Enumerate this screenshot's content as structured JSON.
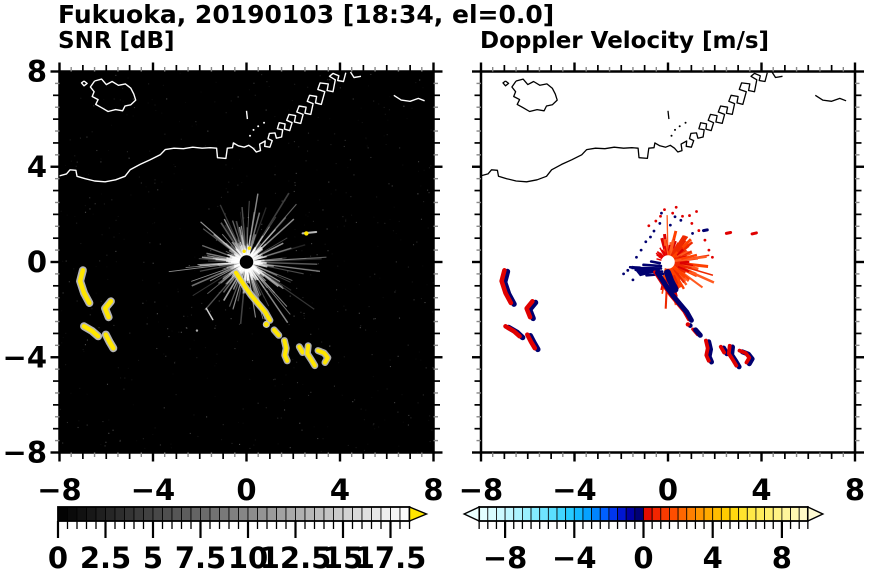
{
  "header": {
    "title": "Fukuoka, 20190103 [18:34, el=0.0]"
  },
  "colors": {
    "yellow": "#ffe600",
    "red": "#e00000",
    "navy": "#000070",
    "snr_bg": "#000000",
    "vel_bg": "#ffffff",
    "snr_coast": "#ffffff",
    "vel_coast": "#000000"
  },
  "chart_data": [
    {
      "type": "heatmap",
      "panel": "left",
      "title": "SNR [dB]",
      "xlim": [
        -8,
        8
      ],
      "ylim": [
        -8,
        8
      ],
      "xticks": [
        -8,
        -4,
        0,
        4,
        8
      ],
      "yticks": [
        8,
        4,
        0,
        -4,
        -8
      ],
      "xtick_labels": [
        "−8",
        "−4",
        "0",
        "4",
        "8"
      ],
      "ytick_labels": [
        "8",
        "4",
        "0",
        "−4",
        "−8"
      ],
      "minor_tick_step": 0.5,
      "background": "#000000",
      "coast_color": "#ffffff",
      "colorbar": {
        "orientation": "horizontal",
        "range": [
          0,
          18.5
        ],
        "cell_step": 0.5,
        "tick_values": [
          0,
          2.5,
          5,
          7.5,
          10,
          12.5,
          15,
          17.5
        ],
        "tick_labels": [
          "0",
          "2.5",
          "5",
          "7.5",
          "10",
          "12.5",
          "15",
          "17.5"
        ],
        "scale": "grayscale black to white",
        "over_arrow_color": "#ffe600"
      },
      "annotations": [
        "radar site at (0,0) with gray clutter starburst",
        "high-SNR yellow echo arc curving southeast from (-0.5,-0.5) to (3.5,-4.2)",
        "yellow echo patches offshore near x -7.2..-5.6, y -0.3..-3.6",
        "white coastline of Hakata Bay: island near (-5.7,7), harbor piers northeast of (1,5)"
      ]
    },
    {
      "type": "heatmap",
      "panel": "right",
      "title": "Doppler Velocity [m/s]",
      "xlim": [
        -8,
        8
      ],
      "ylim": [
        -8,
        8
      ],
      "xticks": [
        -8,
        -4,
        0,
        4,
        8
      ],
      "yticks": [
        8,
        4,
        0,
        -4,
        -8
      ],
      "xtick_labels": [
        "−8",
        "−4",
        "0",
        "4",
        "8"
      ],
      "ytick_labels": [],
      "minor_tick_step": 0.5,
      "background": "#ffffff",
      "coast_color": "#000000",
      "colorbar": {
        "orientation": "horizontal",
        "range": [
          -9.5,
          9.5
        ],
        "cell_step": 0.5,
        "tick_values": [
          -8,
          -4,
          0,
          4,
          8
        ],
        "tick_labels": [
          "−8",
          "−4",
          "0",
          "4",
          "8"
        ],
        "scale": "diverging cyan-blue-navy (negative) / red-orange-yellow-cream (positive)",
        "under_arrow_color": "#eaffff",
        "over_arrow_color": "#fffbd2",
        "stops": [
          [
            -9.5,
            "#e8ffff"
          ],
          [
            -8,
            "#c8f8ff"
          ],
          [
            -6.5,
            "#8feeff"
          ],
          [
            -5,
            "#4fdcff"
          ],
          [
            -4,
            "#19c5ff"
          ],
          [
            -3,
            "#0096ff"
          ],
          [
            -2.2,
            "#005cff"
          ],
          [
            -1.5,
            "#0022e8"
          ],
          [
            -0.8,
            "#0000a8"
          ],
          [
            -0.01,
            "#000060"
          ],
          [
            0.01,
            "#dc0000"
          ],
          [
            0.8,
            "#f32800"
          ],
          [
            1.8,
            "#ff5000"
          ],
          [
            3,
            "#ff8c00"
          ],
          [
            4,
            "#ffb400"
          ],
          [
            5,
            "#ffd400"
          ],
          [
            6,
            "#ffe83c"
          ],
          [
            7.5,
            "#fff078"
          ],
          [
            8.5,
            "#fff7a8"
          ],
          [
            9.5,
            "#fffbd0"
          ]
        ]
      },
      "annotations": [
        "approaching flow (navy, negative) as spikes pointing at site from west",
        "receding flow (red, positive) starburst around site",
        "echo arc and offshore patches two-toned red/navy"
      ]
    }
  ],
  "render": {
    "coast": {
      "mainland": [
        [
          -8,
          3.62
        ],
        [
          -7.7,
          3.7
        ],
        [
          -7.55,
          3.87
        ],
        [
          -7.3,
          3.85
        ],
        [
          -7.25,
          3.6
        ],
        [
          -6.9,
          3.5
        ],
        [
          -6.5,
          3.4
        ],
        [
          -6.05,
          3.37
        ],
        [
          -5.6,
          3.45
        ],
        [
          -5.2,
          3.6
        ],
        [
          -4.98,
          3.87
        ],
        [
          -4.55,
          4.1
        ],
        [
          -4.12,
          4.29
        ],
        [
          -3.69,
          4.5
        ],
        [
          -3.48,
          4.72
        ],
        [
          -3.1,
          4.78
        ],
        [
          -2.7,
          4.76
        ],
        [
          -2.3,
          4.82
        ],
        [
          -1.9,
          4.78
        ],
        [
          -1.55,
          4.8
        ],
        [
          -1.28,
          4.78
        ],
        [
          -1.24,
          4.38
        ],
        [
          -0.88,
          4.35
        ],
        [
          -0.82,
          4.78
        ],
        [
          -0.6,
          4.8
        ],
        [
          -0.56,
          5.0
        ],
        [
          -0.35,
          4.88
        ],
        [
          -0.1,
          4.82
        ],
        [
          0.1,
          4.9
        ],
        [
          0.28,
          4.78
        ],
        [
          0.42,
          4.62
        ],
        [
          0.6,
          4.68
        ],
        [
          0.56,
          4.95
        ],
        [
          0.8,
          5.08
        ],
        [
          0.78,
          4.86
        ],
        [
          1.0,
          4.82
        ],
        [
          1.1,
          5.1
        ],
        [
          0.92,
          5.18
        ],
        [
          0.98,
          5.4
        ],
        [
          1.22,
          5.42
        ],
        [
          1.28,
          5.2
        ],
        [
          1.5,
          5.25
        ],
        [
          1.55,
          5.55
        ],
        [
          1.32,
          5.6
        ],
        [
          1.4,
          5.85
        ],
        [
          1.65,
          5.8
        ],
        [
          1.62,
          5.58
        ],
        [
          1.85,
          5.52
        ],
        [
          1.95,
          5.85
        ],
        [
          1.72,
          5.95
        ],
        [
          1.82,
          6.2
        ],
        [
          2.1,
          6.15
        ],
        [
          2.05,
          5.88
        ],
        [
          2.32,
          5.82
        ],
        [
          2.42,
          6.2
        ],
        [
          2.15,
          6.3
        ],
        [
          2.25,
          6.55
        ],
        [
          2.55,
          6.5
        ],
        [
          2.5,
          6.25
        ],
        [
          2.75,
          6.2
        ],
        [
          2.85,
          6.65
        ],
        [
          2.6,
          6.75
        ],
        [
          2.7,
          7.0
        ],
        [
          3.0,
          6.95
        ],
        [
          2.95,
          6.68
        ],
        [
          3.2,
          6.62
        ],
        [
          3.35,
          7.15
        ],
        [
          3.05,
          7.25
        ],
        [
          3.15,
          7.52
        ],
        [
          3.5,
          7.48
        ],
        [
          3.45,
          7.2
        ],
        [
          3.7,
          7.15
        ],
        [
          3.8,
          7.65
        ],
        [
          3.55,
          7.8
        ],
        [
          3.7,
          7.92
        ],
        [
          3.95,
          7.82
        ],
        [
          3.9,
          7.62
        ],
        [
          4.15,
          7.58
        ],
        [
          4.25,
          7.95
        ]
      ],
      "island": [
        [
          -6.5,
          7.6
        ],
        [
          -6.2,
          7.68
        ],
        [
          -6.0,
          7.45
        ],
        [
          -5.75,
          7.58
        ],
        [
          -5.48,
          7.42
        ],
        [
          -5.18,
          7.48
        ],
        [
          -4.95,
          7.3
        ],
        [
          -4.82,
          7.05
        ],
        [
          -4.74,
          6.8
        ],
        [
          -4.95,
          6.6
        ],
        [
          -5.2,
          6.55
        ],
        [
          -5.3,
          6.35
        ],
        [
          -5.6,
          6.4
        ],
        [
          -5.92,
          6.32
        ],
        [
          -6.2,
          6.48
        ],
        [
          -6.45,
          6.62
        ],
        [
          -6.35,
          6.82
        ],
        [
          -6.6,
          6.95
        ],
        [
          -6.52,
          7.15
        ],
        [
          -6.68,
          7.35
        ],
        [
          -6.5,
          7.6
        ]
      ],
      "islet": [
        [
          -6.95,
          7.6
        ],
        [
          -6.82,
          7.5
        ],
        [
          -6.95,
          7.4
        ],
        [
          -7.06,
          7.52
        ],
        [
          -6.95,
          7.6
        ]
      ],
      "dash_top": [
        [
          4.45,
          7.98
        ],
        [
          4.6,
          7.75
        ],
        [
          4.9,
          7.8
        ]
      ],
      "dash_right": [
        [
          6.3,
          7.0
        ],
        [
          6.62,
          6.8
        ],
        [
          7.0,
          6.75
        ],
        [
          7.35,
          6.87
        ],
        [
          7.62,
          6.77
        ]
      ],
      "pier": [
        [
          0.0,
          6.35
        ],
        [
          0.04,
          6.0
        ]
      ],
      "dots": [
        [
          0.15,
          5.3
        ],
        [
          0.3,
          5.55
        ],
        [
          0.5,
          5.7
        ],
        [
          0.75,
          5.85
        ]
      ]
    },
    "echo_chain": {
      "parts": [
        {
          "kind": "arc",
          "pts": [
            [
              -0.45,
              -0.45
            ],
            [
              -0.25,
              -0.75
            ],
            [
              -0.05,
              -1.05
            ],
            [
              0.2,
              -1.4
            ],
            [
              0.5,
              -1.75
            ],
            [
              0.8,
              -2.1
            ],
            [
              1.0,
              -2.45
            ]
          ]
        },
        {
          "kind": "arc",
          "pts": [
            [
              1.18,
              -2.85
            ],
            [
              1.38,
              -3.08
            ]
          ]
        },
        {
          "kind": "hook",
          "pts": [
            [
              1.62,
              -3.3
            ],
            [
              1.7,
              -3.62
            ],
            [
              1.64,
              -3.92
            ],
            [
              1.74,
              -4.15
            ]
          ]
        },
        {
          "kind": "hook",
          "pts": [
            [
              2.26,
              -3.56
            ],
            [
              2.4,
              -3.8
            ]
          ]
        },
        {
          "kind": "hook",
          "pts": [
            [
              2.64,
              -3.52
            ],
            [
              2.6,
              -3.85
            ],
            [
              2.78,
              -4.12
            ],
            [
              2.92,
              -4.35
            ]
          ]
        },
        {
          "kind": "hook",
          "pts": [
            [
              3.06,
              -3.72
            ],
            [
              3.32,
              -3.82
            ],
            [
              3.48,
              -4.02
            ],
            [
              3.36,
              -4.22
            ]
          ]
        }
      ],
      "dot": [
        0.85,
        -2.62
      ]
    },
    "west_echoes": [
      [
        [
          -7.0,
          -0.35
        ],
        [
          -7.12,
          -0.8
        ],
        [
          -6.95,
          -1.3
        ],
        [
          -6.72,
          -1.72
        ]
      ],
      [
        [
          -5.8,
          -1.65
        ],
        [
          -6.05,
          -1.95
        ],
        [
          -5.9,
          -2.32
        ]
      ],
      [
        [
          -6.95,
          -2.7
        ],
        [
          -6.6,
          -2.9
        ],
        [
          -6.35,
          -3.12
        ]
      ],
      [
        [
          -6.02,
          -3.05
        ],
        [
          -5.86,
          -3.35
        ],
        [
          -5.7,
          -3.62
        ]
      ]
    ],
    "snr_long_rays": [
      [
        187,
        3.35
      ],
      [
        199,
        2.5
      ],
      [
        207,
        1.75
      ],
      [
        171,
        1.7
      ],
      [
        215,
        1.25
      ],
      [
        183,
        2.1
      ]
    ],
    "snr_extra": [
      {
        "kind": "line",
        "pts": [
          [
            -1.72,
            -1.95
          ],
          [
            -1.44,
            -2.42
          ]
        ],
        "color": "#cccccc",
        "w": 1.5
      },
      {
        "kind": "line",
        "pts": [
          [
            2.4,
            1.2
          ],
          [
            2.98,
            1.26
          ]
        ],
        "color": "#bbbbbb",
        "w": 2
      },
      {
        "kind": "dot",
        "at": [
          2.56,
          1.2
        ],
        "color": "#ffe600",
        "r": 2.2
      },
      {
        "kind": "dot",
        "at": [
          -2.12,
          -2.88
        ],
        "color": "#aaaaaa",
        "r": 1.2
      },
      {
        "kind": "dot",
        "at": [
          -0.1,
          0.45
        ],
        "color": "#ffe600",
        "r": 1.7
      },
      {
        "kind": "dot",
        "at": [
          0.12,
          0.58
        ],
        "color": "#ffe600",
        "r": 1.7
      }
    ],
    "vel_extra": [
      {
        "kind": "line",
        "pts": [
          [
            1.52,
            1.32
          ],
          [
            1.68,
            1.35
          ]
        ],
        "color": "#000070",
        "w": 3
      },
      {
        "kind": "line",
        "pts": [
          [
            2.5,
            1.2
          ],
          [
            2.68,
            1.24
          ]
        ],
        "color": "#e00000",
        "w": 3
      },
      {
        "kind": "line",
        "pts": [
          [
            3.6,
            1.18
          ],
          [
            3.78,
            1.22
          ]
        ],
        "color": "#e00000",
        "w": 3
      }
    ],
    "dart_lines": [
      [
        -1.52,
        -0.25,
        -0.3,
        -0.27
      ],
      [
        -1.25,
        -0.42,
        -0.25,
        -0.4
      ],
      [
        -1.05,
        -0.12,
        -0.3,
        -0.17
      ],
      [
        -0.92,
        -0.56,
        -0.22,
        -0.5
      ],
      [
        -0.72,
        0.02,
        -0.35,
        -0.05
      ],
      [
        -1.38,
        -0.33,
        -0.4,
        -0.33
      ],
      [
        -1.62,
        -0.22,
        -1.2,
        -0.24
      ]
    ],
    "dart_triangle": [
      [
        -1.55,
        -0.16
      ],
      [
        -0.3,
        -0.37
      ],
      [
        -1.2,
        -0.6
      ]
    ],
    "navy_blob": [
      [
        -0.02,
        -0.45
      ],
      [
        0.12,
        -0.8
      ],
      [
        0.3,
        -1.15
      ]
    ],
    "navy_dots": [
      [
        -0.95,
        0.85
      ],
      [
        -0.6,
        1.3
      ],
      [
        -1.15,
        0.5
      ],
      [
        -0.35,
        1.62
      ],
      [
        0.3,
        1.9
      ],
      [
        -1.35,
        0.2
      ],
      [
        0.1,
        1.55
      ],
      [
        -0.75,
        1.05
      ],
      [
        0.55,
        1.75
      ],
      [
        -1.5,
        -0.75
      ],
      [
        -1.72,
        -0.35
      ],
      [
        -0.28,
        2.05
      ],
      [
        1.05,
        1.2
      ],
      [
        -1.9,
        -0.5
      ]
    ],
    "red_dots": [
      [
        0.2,
        2.05
      ],
      [
        0.62,
        1.92
      ],
      [
        1.02,
        1.62
      ],
      [
        -0.32,
        1.92
      ],
      [
        1.32,
        1.32
      ],
      [
        1.58,
        0.92
      ],
      [
        -0.52,
        1.72
      ],
      [
        0.92,
        1.95
      ],
      [
        1.22,
        2.12
      ],
      [
        -0.82,
        1.52
      ],
      [
        0.35,
        2.3
      ],
      [
        1.75,
        0.5
      ],
      [
        1.9,
        0.2
      ],
      [
        -0.15,
        2.2
      ]
    ]
  }
}
